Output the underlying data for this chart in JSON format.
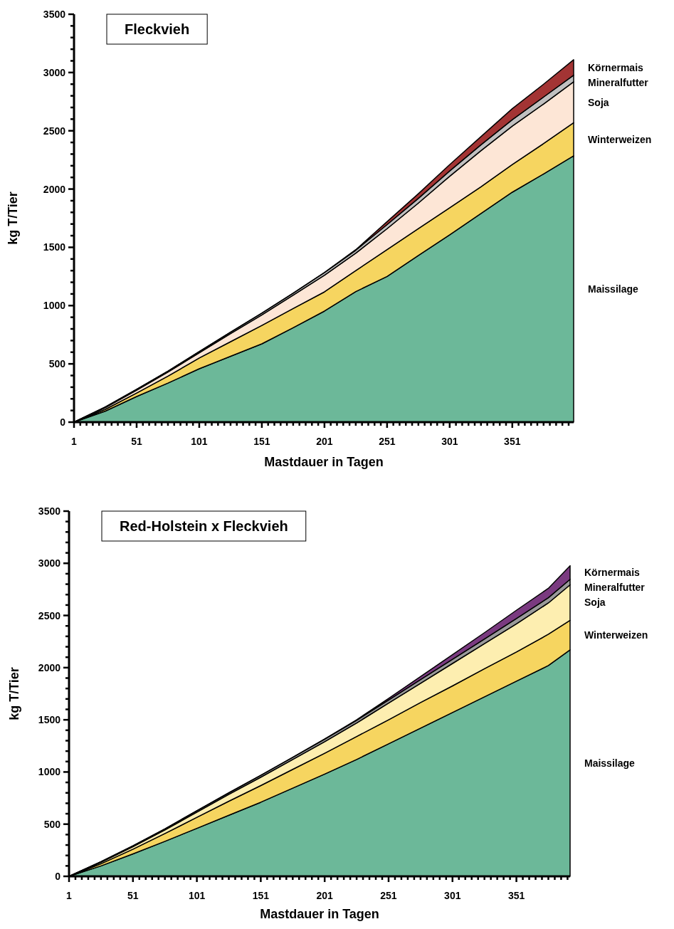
{
  "chart_data": [
    {
      "type": "area",
      "title": "Fleckvieh",
      "xlabel": "Mastdauer in Tagen",
      "ylabel": "kg T/Tier",
      "stacked": true,
      "legend": "right",
      "x": [
        1,
        26,
        51,
        76,
        101,
        126,
        151,
        176,
        201,
        226,
        251,
        276,
        301,
        326,
        351,
        376,
        400
      ],
      "series": [
        {
          "name": "Maissilage",
          "color": "#6cb899",
          "values": [
            0,
            95,
            220,
            335,
            458,
            565,
            672,
            810,
            953,
            1120,
            1250,
            1430,
            1607,
            1790,
            1973,
            2130,
            2285
          ]
        },
        {
          "name": "Winterweizen",
          "color": "#f6d560",
          "values": [
            0,
            15,
            30,
            60,
            92,
            125,
            158,
            165,
            165,
            180,
            230,
            230,
            233,
            230,
            237,
            260,
            284
          ]
        },
        {
          "name": "Soja",
          "color": "#fde6d6",
          "values": [
            0,
            15,
            25,
            35,
            45,
            70,
            90,
            115,
            142,
            150,
            180,
            220,
            270,
            310,
            330,
            340,
            351
          ]
        },
        {
          "name": "Mineralfutter",
          "color": "#c0c0c0",
          "values": [
            0,
            5,
            7,
            8,
            10,
            12,
            15,
            17,
            23,
            25,
            35,
            40,
            45,
            50,
            55,
            60,
            57
          ]
        },
        {
          "name": "Körnermais",
          "color": "#a33434",
          "values": [
            0,
            0,
            0,
            0,
            0,
            0,
            0,
            0,
            0,
            5,
            25,
            40,
            55,
            70,
            95,
            110,
            133
          ]
        }
      ],
      "xlim": [
        1,
        400
      ],
      "ylim": [
        0,
        3500
      ],
      "xticks": [
        1,
        {
          "value": 6,
          "label": null
        },
        {
          "value": 11,
          "label": null
        },
        {
          "value": 16,
          "label": null
        },
        {
          "value": 21,
          "label": null
        },
        {
          "value": 26,
          "label": null
        },
        {
          "value": 31,
          "label": null
        },
        {
          "value": 36,
          "label": null
        },
        {
          "value": 41,
          "label": null
        },
        {
          "value": 46,
          "label": null
        },
        51,
        {
          "value": 56,
          "label": null
        },
        {
          "value": 61,
          "label": null
        },
        {
          "value": 66,
          "label": null
        },
        {
          "value": 71,
          "label": null
        },
        {
          "value": 76,
          "label": null
        },
        {
          "value": 81,
          "label": null
        },
        {
          "value": 86,
          "label": null
        },
        {
          "value": 91,
          "label": null
        },
        {
          "value": 96,
          "label": null
        },
        101,
        {
          "value": 106,
          "label": null
        },
        {
          "value": 111,
          "label": null
        },
        {
          "value": 116,
          "label": null
        },
        {
          "value": 121,
          "label": null
        },
        {
          "value": 126,
          "label": null
        },
        {
          "value": 131,
          "label": null
        },
        {
          "value": 136,
          "label": null
        },
        {
          "value": 141,
          "label": null
        },
        {
          "value": 146,
          "label": null
        },
        151,
        {
          "value": 156,
          "label": null
        },
        {
          "value": 161,
          "label": null
        },
        {
          "value": 166,
          "label": null
        },
        {
          "value": 171,
          "label": null
        },
        {
          "value": 176,
          "label": null
        },
        {
          "value": 181,
          "label": null
        },
        {
          "value": 186,
          "label": null
        },
        {
          "value": 191,
          "label": null
        },
        {
          "value": 196,
          "label": null
        },
        201,
        {
          "value": 206,
          "label": null
        },
        {
          "value": 211,
          "label": null
        },
        {
          "value": 216,
          "label": null
        },
        {
          "value": 221,
          "label": null
        },
        {
          "value": 226,
          "label": null
        },
        {
          "value": 231,
          "label": null
        },
        {
          "value": 236,
          "label": null
        },
        {
          "value": 241,
          "label": null
        },
        {
          "value": 246,
          "label": null
        },
        251,
        {
          "value": 256,
          "label": null
        },
        {
          "value": 261,
          "label": null
        },
        {
          "value": 266,
          "label": null
        },
        {
          "value": 271,
          "label": null
        },
        {
          "value": 276,
          "label": null
        },
        {
          "value": 281,
          "label": null
        },
        {
          "value": 286,
          "label": null
        },
        {
          "value": 291,
          "label": null
        },
        {
          "value": 296,
          "label": null
        },
        301,
        {
          "value": 306,
          "label": null
        },
        {
          "value": 311,
          "label": null
        },
        {
          "value": 316,
          "label": null
        },
        {
          "value": 321,
          "label": null
        },
        {
          "value": 326,
          "label": null
        },
        {
          "value": 331,
          "label": null
        },
        {
          "value": 336,
          "label": null
        },
        {
          "value": 341,
          "label": null
        },
        {
          "value": 346,
          "label": null
        },
        351,
        {
          "value": 356,
          "label": null
        },
        {
          "value": 361,
          "label": null
        },
        {
          "value": 366,
          "label": null
        },
        {
          "value": 371,
          "label": null
        },
        {
          "value": 376,
          "label": null
        },
        {
          "value": 381,
          "label": null
        },
        {
          "value": 386,
          "label": null
        },
        {
          "value": 391,
          "label": null
        },
        {
          "value": 396,
          "label": null
        }
      ],
      "yticks": [
        0,
        {
          "value": 100,
          "label": null
        },
        {
          "value": 200,
          "label": null
        },
        {
          "value": 300,
          "label": null
        },
        {
          "value": 400,
          "label": null
        },
        500,
        {
          "value": 600,
          "label": null
        },
        {
          "value": 700,
          "label": null
        },
        {
          "value": 800,
          "label": null
        },
        {
          "value": 900,
          "label": null
        },
        1000,
        {
          "value": 1100,
          "label": null
        },
        {
          "value": 1200,
          "label": null
        },
        {
          "value": 1300,
          "label": null
        },
        {
          "value": 1400,
          "label": null
        },
        1500,
        {
          "value": 1600,
          "label": null
        },
        {
          "value": 1700,
          "label": null
        },
        {
          "value": 1800,
          "label": null
        },
        {
          "value": 1900,
          "label": null
        },
        2000,
        {
          "value": 2100,
          "label": null
        },
        {
          "value": 2200,
          "label": null
        },
        {
          "value": 2300,
          "label": null
        },
        {
          "value": 2400,
          "label": null
        },
        2500,
        {
          "value": 2600,
          "label": null
        },
        {
          "value": 2700,
          "label": null
        },
        {
          "value": 2800,
          "label": null
        },
        {
          "value": 2900,
          "label": null
        },
        3000,
        {
          "value": 3100,
          "label": null
        },
        {
          "value": 3200,
          "label": null
        },
        {
          "value": 3300,
          "label": null
        },
        {
          "value": 3400,
          "label": null
        },
        3500
      ]
    },
    {
      "type": "area",
      "title": "Red-Holstein x Fleckvieh",
      "xlabel": "Mastdauer in Tagen",
      "ylabel": "kg T/Tier",
      "stacked": true,
      "legend": "right",
      "x": [
        1,
        26,
        51,
        76,
        101,
        126,
        151,
        176,
        201,
        226,
        251,
        276,
        301,
        326,
        351,
        376,
        393
      ],
      "series": [
        {
          "name": "Maissilage",
          "color": "#6cb899",
          "values": [
            0,
            100,
            215,
            335,
            460,
            585,
            710,
            845,
            980,
            1120,
            1270,
            1420,
            1570,
            1720,
            1870,
            2020,
            2170
          ]
        },
        {
          "name": "Winterweizen",
          "color": "#f6d560",
          "values": [
            0,
            20,
            45,
            75,
            105,
            135,
            160,
            180,
            200,
            220,
            230,
            245,
            255,
            270,
            280,
            300,
            283
          ]
        },
        {
          "name": "Soja",
          "color": "#fdeeb0",
          "values": [
            0,
            15,
            25,
            35,
            50,
            65,
            80,
            95,
            110,
            130,
            160,
            185,
            215,
            240,
            270,
            300,
            341
          ]
        },
        {
          "name": "Mineralfutter",
          "color": "#9a9a9a",
          "values": [
            0,
            5,
            7,
            10,
            13,
            15,
            18,
            20,
            25,
            25,
            30,
            35,
            40,
            45,
            50,
            50,
            53
          ]
        },
        {
          "name": "Körnermais",
          "color": "#7a3a80",
          "values": [
            0,
            0,
            0,
            0,
            0,
            0,
            0,
            0,
            0,
            5,
            15,
            30,
            45,
            60,
            80,
            90,
            130
          ]
        }
      ],
      "xlim": [
        1,
        393
      ],
      "ylim": [
        0,
        3500
      ],
      "xticks": [
        1,
        {
          "value": 6,
          "label": null
        },
        {
          "value": 11,
          "label": null
        },
        {
          "value": 16,
          "label": null
        },
        {
          "value": 21,
          "label": null
        },
        {
          "value": 26,
          "label": null
        },
        {
          "value": 31,
          "label": null
        },
        {
          "value": 36,
          "label": null
        },
        {
          "value": 41,
          "label": null
        },
        {
          "value": 46,
          "label": null
        },
        51,
        {
          "value": 56,
          "label": null
        },
        {
          "value": 61,
          "label": null
        },
        {
          "value": 66,
          "label": null
        },
        {
          "value": 71,
          "label": null
        },
        {
          "value": 76,
          "label": null
        },
        {
          "value": 81,
          "label": null
        },
        {
          "value": 86,
          "label": null
        },
        {
          "value": 91,
          "label": null
        },
        {
          "value": 96,
          "label": null
        },
        101,
        {
          "value": 106,
          "label": null
        },
        {
          "value": 111,
          "label": null
        },
        {
          "value": 116,
          "label": null
        },
        {
          "value": 121,
          "label": null
        },
        {
          "value": 126,
          "label": null
        },
        {
          "value": 131,
          "label": null
        },
        {
          "value": 136,
          "label": null
        },
        {
          "value": 141,
          "label": null
        },
        {
          "value": 146,
          "label": null
        },
        151,
        {
          "value": 156,
          "label": null
        },
        {
          "value": 161,
          "label": null
        },
        {
          "value": 166,
          "label": null
        },
        {
          "value": 171,
          "label": null
        },
        {
          "value": 176,
          "label": null
        },
        {
          "value": 181,
          "label": null
        },
        {
          "value": 186,
          "label": null
        },
        {
          "value": 191,
          "label": null
        },
        {
          "value": 196,
          "label": null
        },
        201,
        {
          "value": 206,
          "label": null
        },
        {
          "value": 211,
          "label": null
        },
        {
          "value": 216,
          "label": null
        },
        {
          "value": 221,
          "label": null
        },
        {
          "value": 226,
          "label": null
        },
        {
          "value": 231,
          "label": null
        },
        {
          "value": 236,
          "label": null
        },
        {
          "value": 241,
          "label": null
        },
        {
          "value": 246,
          "label": null
        },
        251,
        {
          "value": 256,
          "label": null
        },
        {
          "value": 261,
          "label": null
        },
        {
          "value": 266,
          "label": null
        },
        {
          "value": 271,
          "label": null
        },
        {
          "value": 276,
          "label": null
        },
        {
          "value": 281,
          "label": null
        },
        {
          "value": 286,
          "label": null
        },
        {
          "value": 291,
          "label": null
        },
        {
          "value": 296,
          "label": null
        },
        301,
        {
          "value": 306,
          "label": null
        },
        {
          "value": 311,
          "label": null
        },
        {
          "value": 316,
          "label": null
        },
        {
          "value": 321,
          "label": null
        },
        {
          "value": 326,
          "label": null
        },
        {
          "value": 331,
          "label": null
        },
        {
          "value": 336,
          "label": null
        },
        {
          "value": 341,
          "label": null
        },
        {
          "value": 346,
          "label": null
        },
        351,
        {
          "value": 356,
          "label": null
        },
        {
          "value": 361,
          "label": null
        },
        {
          "value": 366,
          "label": null
        },
        {
          "value": 371,
          "label": null
        },
        {
          "value": 376,
          "label": null
        },
        {
          "value": 381,
          "label": null
        },
        {
          "value": 386,
          "label": null
        },
        {
          "value": 391,
          "label": null
        }
      ],
      "yticks": [
        0,
        {
          "value": 100,
          "label": null
        },
        {
          "value": 200,
          "label": null
        },
        {
          "value": 300,
          "label": null
        },
        {
          "value": 400,
          "label": null
        },
        500,
        {
          "value": 600,
          "label": null
        },
        {
          "value": 700,
          "label": null
        },
        {
          "value": 800,
          "label": null
        },
        {
          "value": 900,
          "label": null
        },
        1000,
        {
          "value": 1100,
          "label": null
        },
        {
          "value": 1200,
          "label": null
        },
        {
          "value": 1300,
          "label": null
        },
        {
          "value": 1400,
          "label": null
        },
        1500,
        {
          "value": 1600,
          "label": null
        },
        {
          "value": 1700,
          "label": null
        },
        {
          "value": 1800,
          "label": null
        },
        {
          "value": 1900,
          "label": null
        },
        2000,
        {
          "value": 2100,
          "label": null
        },
        {
          "value": 2200,
          "label": null
        },
        {
          "value": 2300,
          "label": null
        },
        {
          "value": 2400,
          "label": null
        },
        2500,
        {
          "value": 2600,
          "label": null
        },
        {
          "value": 2700,
          "label": null
        },
        {
          "value": 2800,
          "label": null
        },
        {
          "value": 2900,
          "label": null
        },
        3000,
        {
          "value": 3100,
          "label": null
        },
        {
          "value": 3200,
          "label": null
        },
        {
          "value": 3300,
          "label": null
        },
        {
          "value": 3400,
          "label": null
        },
        3500
      ]
    }
  ]
}
